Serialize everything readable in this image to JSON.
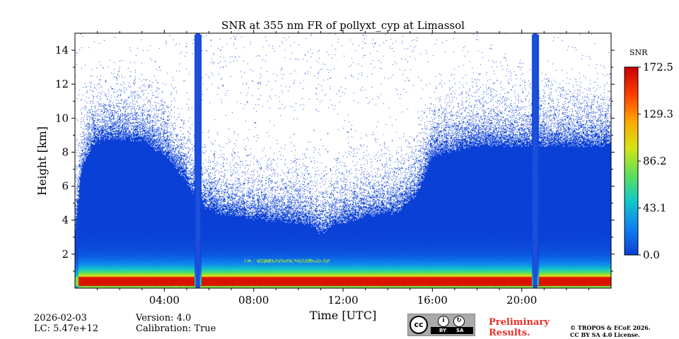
{
  "chart_data": {
    "type": "heatmap",
    "title": "SNR at 355 nm FR of pollyxt_cyp at Limassol",
    "xlabel": "Time [UTC]",
    "ylabel": "Height [km]",
    "xlim_hours": [
      0,
      24
    ],
    "ylim_km": [
      0,
      15
    ],
    "xticks": [
      "04:00",
      "08:00",
      "12:00",
      "16:00",
      "20:00"
    ],
    "xtick_hours": [
      4,
      8,
      12,
      16,
      20
    ],
    "yticks": [
      2,
      4,
      6,
      8,
      10,
      12,
      14
    ],
    "colorbar": {
      "label": "SNR",
      "min": 0.0,
      "max": 172.5,
      "ticks": [
        "0.0",
        "43.1",
        "86.2",
        "129.3",
        "172.5"
      ],
      "colormap": "jet",
      "colors": [
        "#0a3fd6",
        "#0f80f0",
        "#12c8c8",
        "#5ee05a",
        "#d6e414",
        "#ffa600",
        "#ff3a00",
        "#c80000"
      ]
    },
    "signal_top_profile_km": {
      "hours": [
        0,
        0.3,
        0.8,
        1.5,
        3.0,
        4.2,
        5.0,
        5.6,
        6.5,
        8.0,
        9.5,
        10.5,
        11.0,
        12.0,
        13.0,
        14.5,
        15.3,
        16.0,
        18.0,
        20.0,
        21.5,
        24.0
      ],
      "height": [
        3.6,
        7.5,
        9.0,
        9.3,
        9.2,
        8.2,
        6.7,
        5.4,
        4.9,
        4.6,
        4.4,
        4.3,
        3.7,
        4.4,
        4.7,
        5.0,
        6.0,
        8.3,
        8.9,
        8.9,
        8.9,
        8.9
      ]
    },
    "calibration_gaps_hours": [
      5.5,
      20.6
    ],
    "near_range_peak": {
      "height_km": [
        0.2,
        0.6
      ],
      "snr": 165
    },
    "aerosol_layer": {
      "hours": [
        7.6,
        11.4
      ],
      "height_km": 1.6
    }
  },
  "footer": {
    "date": "2026-02-03",
    "lc": "LC: 5.47e+12",
    "version": "Version: 4.0",
    "calibration": "Calibration: True",
    "preliminary_line1": "Preliminary",
    "preliminary_line2": "Results.",
    "copyright_line1": "© TROPOS & ECoE 2026.",
    "copyright_line2": "CC BY SA 4.0 License."
  },
  "license_badge": {
    "cc": "cc",
    "by": "BY",
    "sa": "SA"
  }
}
